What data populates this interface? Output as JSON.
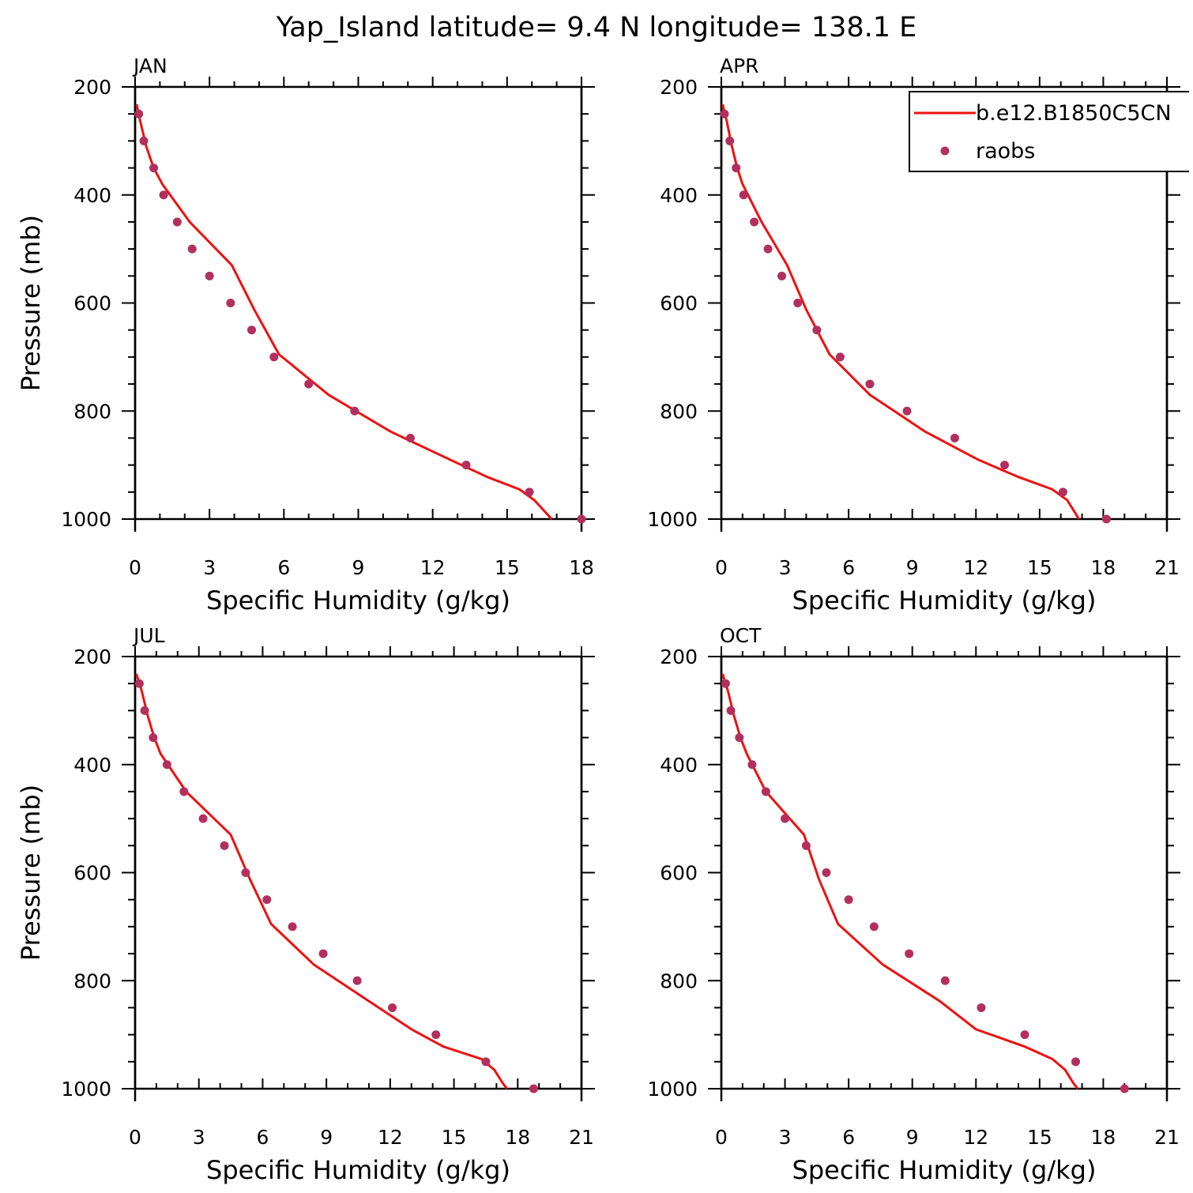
{
  "figure": {
    "title": "Yap_Island  latitude= 9.4 N longitude= 138.1 E"
  },
  "style": {
    "model_color": "#ee1111",
    "obs_color": "#b22f5e",
    "frame_color": "#000000"
  },
  "legend": {
    "placement": "top-right",
    "panel": 1,
    "entries": [
      {
        "label": "b.e12.B1850C5CN",
        "kind": "line"
      },
      {
        "label": "raobs",
        "kind": "marker"
      }
    ]
  },
  "chart_data": [
    {
      "type": "line",
      "panel_label": "JAN",
      "xlabel": "Specific Humidity (g/kg)",
      "ylabel": "Pressure (mb)",
      "xlim": [
        0,
        18
      ],
      "ylim": [
        200,
        1000
      ],
      "y_inverted": true,
      "x_ticks": [
        0,
        3,
        6,
        9,
        12,
        15,
        18
      ],
      "y_ticks": [
        200,
        400,
        600,
        800,
        1000
      ],
      "series": [
        {
          "name": "b.e12.B1850C5CN",
          "kind": "line",
          "x": [
            0.06,
            0.2,
            0.45,
            0.75,
            1.1,
            2.2,
            3.9,
            4.8,
            5.8,
            7.8,
            10.3,
            12.7,
            14.2,
            15.5,
            16.1,
            16.6,
            16.8
          ],
          "y": [
            232,
            262,
            310,
            350,
            380,
            450,
            530,
            612,
            695,
            770,
            838,
            890,
            922,
            945,
            965,
            990,
            1000
          ]
        },
        {
          "name": "raobs",
          "kind": "scatter",
          "x": [
            0.15,
            0.35,
            0.75,
            1.15,
            1.7,
            2.3,
            3.0,
            3.85,
            4.7,
            5.6,
            7.0,
            8.85,
            11.1,
            13.35,
            15.9,
            18.0
          ],
          "y": [
            250,
            300,
            350,
            400,
            450,
            500,
            550,
            600,
            650,
            700,
            750,
            800,
            850,
            900,
            950,
            1000
          ]
        }
      ]
    },
    {
      "type": "line",
      "panel_label": "APR",
      "xlabel": "Specific Humidity (g/kg)",
      "ylabel": "",
      "xlim": [
        0,
        21
      ],
      "ylim": [
        200,
        1000
      ],
      "y_inverted": true,
      "x_ticks": [
        0,
        3,
        6,
        9,
        12,
        15,
        18,
        21
      ],
      "y_ticks": [
        200,
        400,
        600,
        800,
        1000
      ],
      "series": [
        {
          "name": "b.e12.B1850C5CN",
          "kind": "line",
          "x": [
            0.06,
            0.25,
            0.5,
            0.75,
            1.0,
            1.9,
            3.1,
            4.0,
            5.1,
            7.0,
            9.6,
            12.1,
            14.0,
            15.6,
            16.3,
            16.7,
            16.85
          ],
          "y": [
            232,
            262,
            310,
            350,
            380,
            450,
            530,
            612,
            695,
            770,
            838,
            890,
            922,
            945,
            965,
            990,
            1000
          ]
        },
        {
          "name": "raobs",
          "kind": "scatter",
          "x": [
            0.15,
            0.4,
            0.7,
            1.05,
            1.55,
            2.2,
            2.85,
            3.6,
            4.5,
            5.6,
            7.0,
            8.75,
            11.0,
            13.35,
            16.1,
            18.15
          ],
          "y": [
            250,
            300,
            350,
            400,
            450,
            500,
            550,
            600,
            650,
            700,
            750,
            800,
            850,
            900,
            950,
            1000
          ]
        }
      ]
    },
    {
      "type": "line",
      "panel_label": "JUL",
      "xlabel": "Specific Humidity (g/kg)",
      "ylabel": "Pressure (mb)",
      "xlim": [
        0,
        21
      ],
      "ylim": [
        200,
        1000
      ],
      "y_inverted": true,
      "x_ticks": [
        0,
        3,
        6,
        9,
        12,
        15,
        18,
        21
      ],
      "y_ticks": [
        200,
        400,
        600,
        800,
        1000
      ],
      "series": [
        {
          "name": "b.e12.B1850C5CN",
          "kind": "line",
          "x": [
            0.06,
            0.3,
            0.6,
            0.9,
            1.2,
            2.4,
            4.5,
            5.4,
            6.4,
            8.4,
            11.0,
            13.0,
            14.5,
            16.3,
            16.9,
            17.3,
            17.5
          ],
          "y": [
            232,
            262,
            310,
            350,
            380,
            450,
            530,
            612,
            695,
            770,
            838,
            890,
            922,
            945,
            965,
            990,
            1000
          ]
        },
        {
          "name": "raobs",
          "kind": "scatter",
          "x": [
            0.2,
            0.45,
            0.85,
            1.5,
            2.3,
            3.2,
            4.2,
            5.2,
            6.2,
            7.4,
            8.85,
            10.45,
            12.1,
            14.15,
            16.5,
            18.75
          ],
          "y": [
            250,
            300,
            350,
            400,
            450,
            500,
            550,
            600,
            650,
            700,
            750,
            800,
            850,
            900,
            950,
            1000
          ]
        }
      ]
    },
    {
      "type": "line",
      "panel_label": "OCT",
      "xlabel": "Specific Humidity (g/kg)",
      "ylabel": "",
      "xlim": [
        0,
        21
      ],
      "ylim": [
        200,
        1000
      ],
      "y_inverted": true,
      "x_ticks": [
        0,
        3,
        6,
        9,
        12,
        15,
        18,
        21
      ],
      "y_ticks": [
        200,
        400,
        600,
        800,
        1000
      ],
      "series": [
        {
          "name": "b.e12.B1850C5CN",
          "kind": "line",
          "x": [
            0.06,
            0.3,
            0.6,
            0.9,
            1.2,
            2.1,
            3.9,
            4.6,
            5.5,
            7.6,
            10.3,
            12.0,
            14.3,
            15.6,
            16.2,
            16.6,
            16.8
          ],
          "y": [
            232,
            262,
            310,
            350,
            380,
            450,
            530,
            612,
            695,
            770,
            838,
            890,
            922,
            945,
            965,
            990,
            1000
          ]
        },
        {
          "name": "raobs",
          "kind": "scatter",
          "x": [
            0.2,
            0.45,
            0.85,
            1.45,
            2.1,
            3.0,
            4.0,
            4.95,
            6.0,
            7.2,
            8.85,
            10.55,
            12.25,
            14.3,
            16.7,
            19.0
          ],
          "y": [
            250,
            300,
            350,
            400,
            450,
            500,
            550,
            600,
            650,
            700,
            750,
            800,
            850,
            900,
            950,
            1000
          ]
        }
      ]
    }
  ]
}
